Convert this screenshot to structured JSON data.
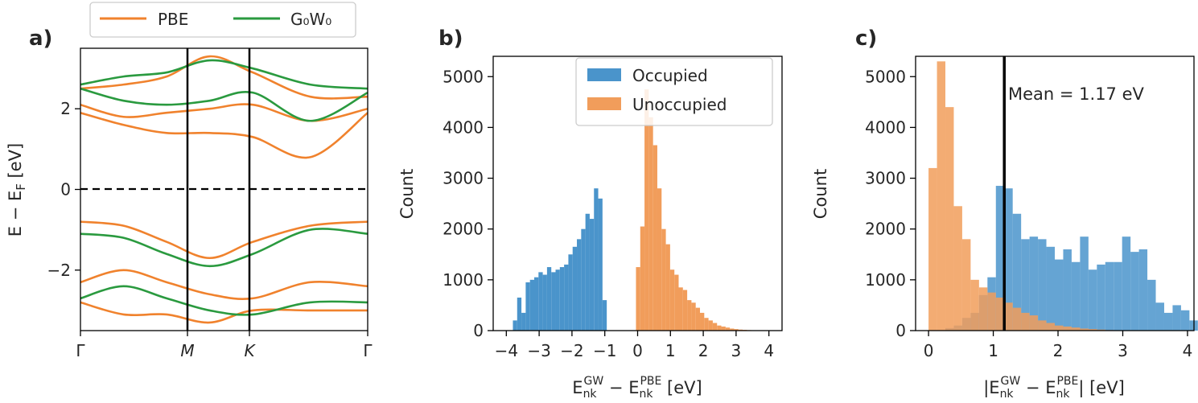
{
  "chart_data": [
    {
      "panel": "a)",
      "type": "line",
      "ylabel": "E − E_F [eV]",
      "xlabel": "",
      "ylim": [
        -3.5,
        3.5
      ],
      "y_ticks": [
        -2,
        0,
        2
      ],
      "x_ticks": [
        "Γ",
        "M",
        "K",
        "Γ"
      ],
      "legend": {
        "placement": "top",
        "entries": [
          {
            "name": "PBE",
            "color": "#f0822d"
          },
          {
            "name": "G₀W₀",
            "color": "#2a9a3f"
          }
        ]
      },
      "fermi_level": 0,
      "series": [
        {
          "name": "PBE",
          "color": "#f0822d",
          "bands": [
            {
              "k": [
                0,
                0.15,
                0.3,
                0.45,
                0.6,
                0.8,
                1
              ],
              "energy": [
                1.9,
                1.6,
                1.4,
                1.4,
                1.3,
                0.8,
                1.9
              ]
            },
            {
              "k": [
                0,
                0.15,
                0.3,
                0.45,
                0.6,
                0.8,
                1
              ],
              "energy": [
                2.1,
                1.8,
                1.9,
                2.0,
                2.1,
                1.7,
                2.0
              ]
            },
            {
              "k": [
                0,
                0.15,
                0.3,
                0.45,
                0.6,
                0.8,
                1
              ],
              "energy": [
                2.5,
                2.6,
                2.8,
                3.3,
                2.9,
                2.3,
                2.3
              ]
            },
            {
              "k": [
                0,
                0.15,
                0.3,
                0.45,
                0.6,
                0.8,
                1
              ],
              "energy": [
                -0.8,
                -0.9,
                -1.3,
                -1.7,
                -1.3,
                -0.9,
                -0.8
              ]
            },
            {
              "k": [
                0,
                0.15,
                0.3,
                0.45,
                0.6,
                0.8,
                1
              ],
              "energy": [
                -2.3,
                -2.0,
                -2.3,
                -2.6,
                -2.7,
                -2.3,
                -2.4
              ]
            },
            {
              "k": [
                0,
                0.15,
                0.3,
                0.45,
                0.6,
                0.8,
                1
              ],
              "energy": [
                -2.8,
                -3.1,
                -3.1,
                -3.3,
                -3.0,
                -3.0,
                -3.0
              ]
            }
          ]
        },
        {
          "name": "G₀W₀",
          "color": "#2a9a3f",
          "bands": [
            {
              "k": [
                0,
                0.15,
                0.3,
                0.45,
                0.6,
                0.8,
                1
              ],
              "energy": [
                2.5,
                2.2,
                2.1,
                2.2,
                2.4,
                1.7,
                2.4
              ]
            },
            {
              "k": [
                0,
                0.15,
                0.3,
                0.45,
                0.6,
                0.8,
                1
              ],
              "energy": [
                2.6,
                2.8,
                2.9,
                3.2,
                3.0,
                2.6,
                2.5
              ]
            },
            {
              "k": [
                0,
                0.15,
                0.3,
                0.45,
                0.6,
                0.8,
                1
              ],
              "energy": [
                -1.1,
                -1.2,
                -1.6,
                -1.9,
                -1.6,
                -1.0,
                -1.1
              ]
            },
            {
              "k": [
                0,
                0.15,
                0.3,
                0.45,
                0.6,
                0.8,
                1
              ],
              "energy": [
                -2.7,
                -2.4,
                -2.7,
                -3.0,
                -3.1,
                -2.8,
                -2.8
              ]
            }
          ]
        }
      ]
    },
    {
      "panel": "b)",
      "type": "bar",
      "xlabel": "E_nk^GW − E_nk^PBE [eV]",
      "ylabel": "Count",
      "xlim": [
        -4.4,
        4.4
      ],
      "ylim": [
        0,
        5400
      ],
      "x_ticks": [
        -4,
        -3,
        -2,
        -1,
        0,
        1,
        2,
        3,
        4
      ],
      "y_ticks": [
        0,
        1000,
        2000,
        3000,
        4000,
        5000
      ],
      "legend": {
        "placement": "top-right",
        "entries": [
          {
            "name": "Occupied",
            "color": "#4a94cb"
          },
          {
            "name": "Unoccupied",
            "color": "#f19d5b"
          }
        ]
      },
      "series": [
        {
          "name": "Occupied",
          "color": "#4a94cb",
          "bin_start": -3.8,
          "bin_width": 0.13,
          "values": [
            200,
            650,
            350,
            950,
            1000,
            1050,
            1150,
            1100,
            1250,
            1150,
            1200,
            1250,
            1300,
            1500,
            1650,
            1800,
            2000,
            2300,
            2200,
            2800,
            2600,
            600
          ]
        },
        {
          "name": "Unoccupied",
          "color": "#f19d5b",
          "bin_start": -0.05,
          "bin_width": 0.13,
          "values": [
            1250,
            2050,
            4750,
            4200,
            3650,
            2800,
            2000,
            1700,
            1200,
            1100,
            850,
            800,
            600,
            550,
            450,
            350,
            250,
            200,
            150,
            100,
            80,
            60,
            40,
            30,
            20,
            15,
            10,
            5
          ]
        }
      ]
    },
    {
      "panel": "c)",
      "type": "bar",
      "xlabel": "|E_nk^GW − E_nk^PBE| [eV]",
      "ylabel": "Count",
      "xlim": [
        -0.2,
        4.1
      ],
      "ylim": [
        0,
        5400
      ],
      "x_ticks": [
        0,
        1,
        2,
        3,
        4
      ],
      "y_ticks": [
        0,
        1000,
        2000,
        3000,
        4000,
        5000
      ],
      "annotation": "Mean = 1.17 eV",
      "mean_line": 1.17,
      "series": [
        {
          "name": "Occupied",
          "color": "#4a94cb",
          "bin_start": 0,
          "bin_width": 0.13,
          "values": [
            0,
            0,
            50,
            100,
            250,
            350,
            700,
            1050,
            2850,
            2800,
            2300,
            1800,
            1850,
            1800,
            1650,
            1400,
            1600,
            1350,
            1850,
            1200,
            1300,
            1350,
            1350,
            1850,
            1550,
            1600,
            1000,
            550,
            350,
            500,
            400,
            200
          ]
        },
        {
          "name": "Unoccupied",
          "color": "#f19d5b",
          "bin_start": 0,
          "bin_width": 0.13,
          "values": [
            3200,
            5300,
            4400,
            2450,
            1800,
            1000,
            850,
            750,
            650,
            550,
            450,
            350,
            300,
            200,
            150,
            100,
            80,
            60,
            40,
            30,
            20,
            10,
            5
          ]
        }
      ]
    }
  ]
}
